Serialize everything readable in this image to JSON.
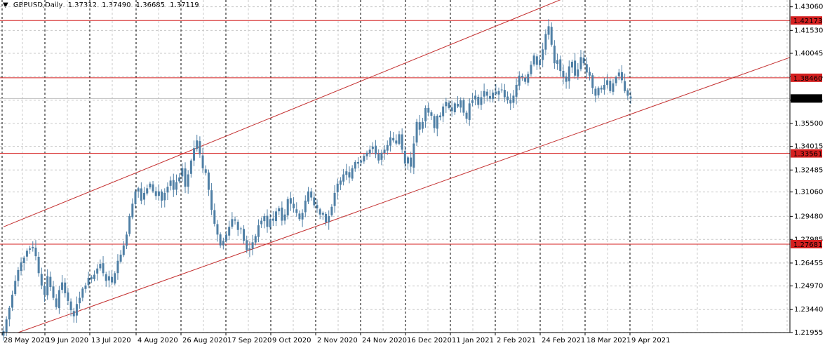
{
  "header": {
    "symbol": "GBPUSD,Daily",
    "open": "1.37312",
    "high": "1.37490",
    "low": "1.36685",
    "close": "1.37119"
  },
  "colors": {
    "background": "#ffffff",
    "candle": "#4f7fa5",
    "level_line": "#d42020",
    "channel_line": "#c43030",
    "grid": "#c8c8c8",
    "separator": "#000000",
    "label_text": "#ffffff"
  },
  "chart_data": {
    "type": "candlestick",
    "title": "",
    "symbol": "GBPUSD",
    "timeframe": "Daily",
    "ylim": [
      1.2195,
      1.435
    ],
    "grid": true,
    "y_ticks": [
      "1.43060",
      "1.41530",
      "1.40045",
      "1.38525",
      "1.37005",
      "1.35500",
      "1.34015",
      "1.32485",
      "1.31060",
      "1.29480",
      "1.27985",
      "1.26455",
      "1.24970",
      "1.23440",
      "1.21955"
    ],
    "x_ticks": [
      "28 May 2020",
      "19 Jun 2020",
      "13 Jul 2020",
      "4 Aug 2020",
      "26 Aug 2020",
      "17 Sep 2020",
      "9 Oct 2020",
      "2 Nov 2020",
      "24 Nov 2020",
      "16 Dec 2020",
      "11 Jan 2021",
      "2 Feb 2021",
      "24 Feb 2021",
      "18 Mar 2021",
      "9 Apr 2021"
    ],
    "horizontal_levels": [
      {
        "label": "1.42173",
        "value": 1.42173
      },
      {
        "label": "1.38460",
        "value": 1.3846
      },
      {
        "label": "1.33561",
        "value": 1.33561
      },
      {
        "label": "1.27681",
        "value": 1.27681
      }
    ],
    "current_price": {
      "label": "1.37119",
      "value": 1.37119
    },
    "channel": {
      "upper": [
        {
          "x": 0,
          "y": 1.288
        },
        {
          "x": 195,
          "y": 1.439
        }
      ],
      "lower": [
        {
          "x": 5,
          "y": 1.2195
        },
        {
          "x": 279,
          "y": 1.405
        }
      ]
    },
    "closes": [
      1.2205,
      1.228,
      1.2355,
      1.244,
      1.253,
      1.26,
      1.265,
      1.268,
      1.2725,
      1.274,
      1.275,
      1.269,
      1.258,
      1.25,
      1.244,
      1.256,
      1.249,
      1.242,
      1.236,
      1.247,
      1.252,
      1.245,
      1.24,
      1.234,
      1.23,
      1.238,
      1.242,
      1.248,
      1.25,
      1.255,
      1.254,
      1.257,
      1.261,
      1.264,
      1.258,
      1.253,
      1.256,
      1.252,
      1.258,
      1.266,
      1.27,
      1.276,
      1.283,
      1.295,
      1.303,
      1.311,
      1.313,
      1.305,
      1.31,
      1.313,
      1.316,
      1.311,
      1.308,
      1.311,
      1.305,
      1.31,
      1.314,
      1.318,
      1.312,
      1.317,
      1.32,
      1.326,
      1.314,
      1.322,
      1.331,
      1.339,
      1.344,
      1.335,
      1.326,
      1.323,
      1.312,
      1.299,
      1.29,
      1.283,
      1.276,
      1.279,
      1.283,
      1.288,
      1.293,
      1.292,
      1.286,
      1.287,
      1.279,
      1.273,
      1.274,
      1.278,
      1.282,
      1.289,
      1.292,
      1.295,
      1.288,
      1.293,
      1.292,
      1.298,
      1.3,
      1.292,
      1.296,
      1.306,
      1.303,
      1.3,
      1.297,
      1.293,
      1.297,
      1.305,
      1.311,
      1.307,
      1.302,
      1.3,
      1.296,
      1.297,
      1.291,
      1.295,
      1.301,
      1.31,
      1.316,
      1.318,
      1.322,
      1.324,
      1.32,
      1.326,
      1.33,
      1.329,
      1.331,
      1.334,
      1.336,
      1.338,
      1.34,
      1.335,
      1.331,
      1.336,
      1.338,
      1.341,
      1.346,
      1.344,
      1.342,
      1.348,
      1.338,
      1.329,
      1.333,
      1.327,
      1.342,
      1.356,
      1.351,
      1.356,
      1.365,
      1.362,
      1.36,
      1.352,
      1.36,
      1.359,
      1.366,
      1.369,
      1.365,
      1.363,
      1.368,
      1.366,
      1.37,
      1.362,
      1.358,
      1.368,
      1.37,
      1.373,
      1.367,
      1.372,
      1.376,
      1.373,
      1.371,
      1.375,
      1.374,
      1.376,
      1.377,
      1.372,
      1.37,
      1.368,
      1.373,
      1.38,
      1.386,
      1.385,
      1.382,
      1.387,
      1.393,
      1.399,
      1.393,
      1.396,
      1.403,
      1.413,
      1.418,
      1.406,
      1.394,
      1.396,
      1.389,
      1.385,
      1.382,
      1.392,
      1.395,
      1.386,
      1.39,
      1.398,
      1.394,
      1.388,
      1.386,
      1.378,
      1.373,
      1.378,
      1.377,
      1.38,
      1.383,
      1.376,
      1.381,
      1.385,
      1.388,
      1.383,
      1.376,
      1.373,
      1.3712
    ]
  }
}
